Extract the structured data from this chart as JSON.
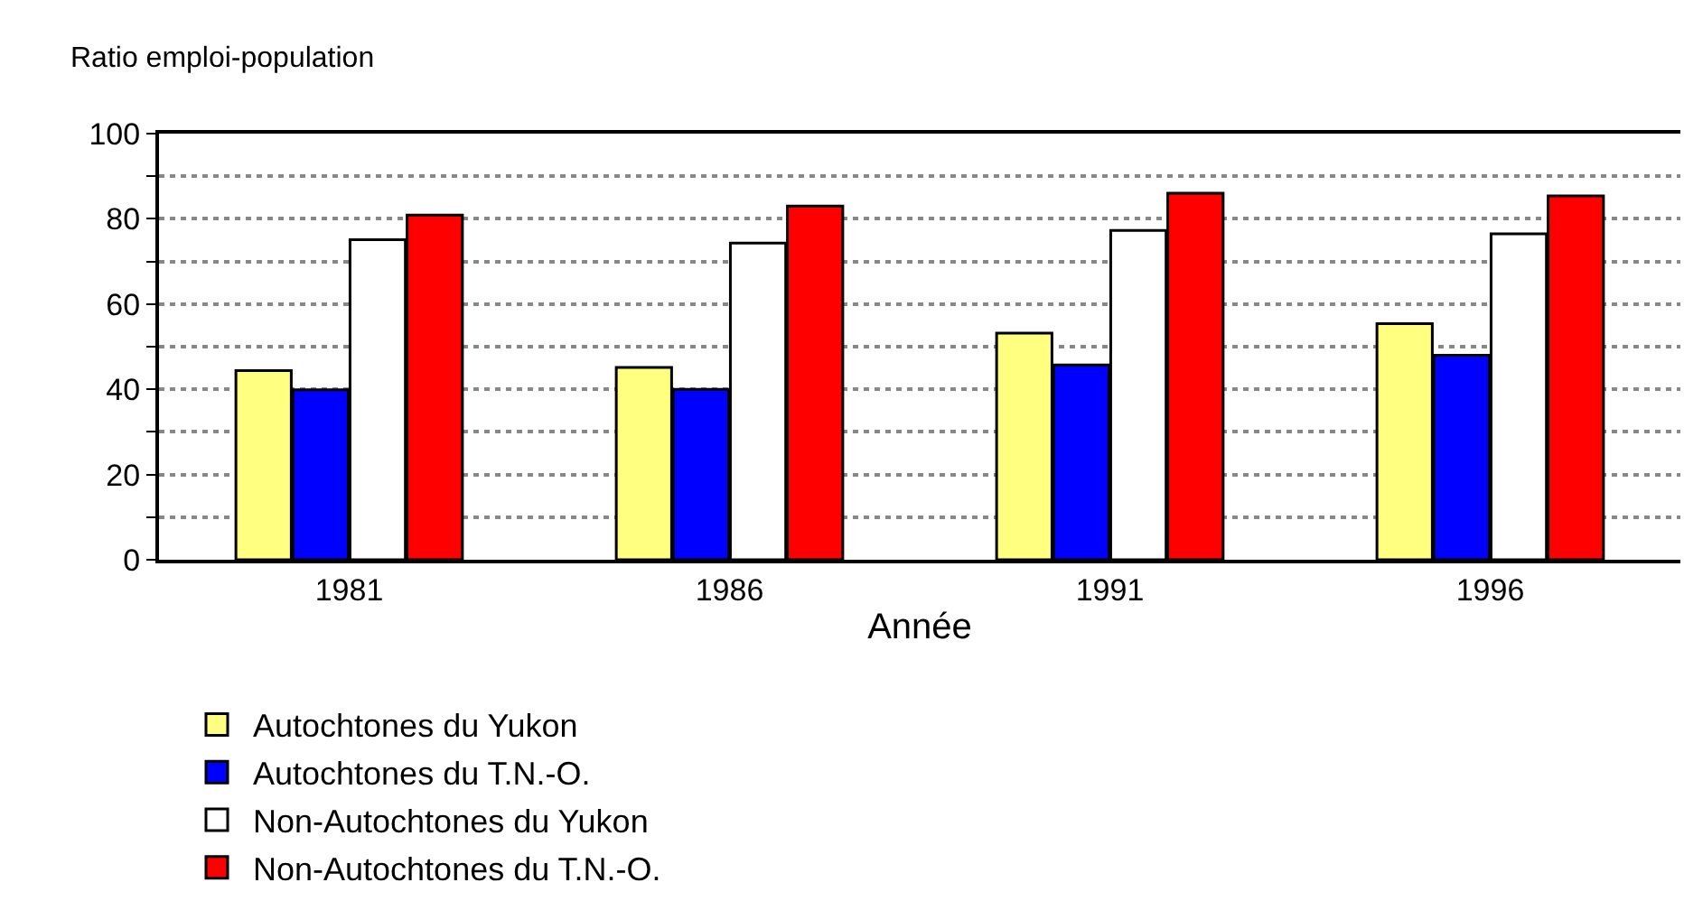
{
  "chart_data": {
    "type": "bar",
    "ylabel": "Ratio emploi-population",
    "xlabel": "Année",
    "categories": [
      "1981",
      "1986",
      "1991",
      "1996"
    ],
    "series": [
      {
        "name": "Autochtones du Yukon",
        "color": "#ffff80",
        "values": [
          44.4,
          45.1,
          53.2,
          55.4
        ]
      },
      {
        "name": "Autochtones du T.N.-O.",
        "color": "#0000ff",
        "values": [
          39.9,
          40,
          45.7,
          48
        ]
      },
      {
        "name": "Non-Autochtones du Yukon",
        "color": "#ffffff",
        "values": [
          75.1,
          74.3,
          77.3,
          76.5
        ]
      },
      {
        "name": "Non-Autochtones du T.N.-O.",
        "color": "#ff0000",
        "values": [
          80.9,
          83,
          86,
          85.4
        ]
      }
    ],
    "ylim": [
      0,
      100
    ],
    "yticks": [
      0,
      {
        "value": 10,
        "label": null
      },
      20,
      {
        "value": 30,
        "label": null
      },
      40,
      {
        "value": 50,
        "label": null
      },
      60,
      {
        "value": 70,
        "label": null
      },
      80,
      {
        "value": 90,
        "label": null
      },
      100
    ],
    "grid": "y",
    "legend": "bottom"
  }
}
